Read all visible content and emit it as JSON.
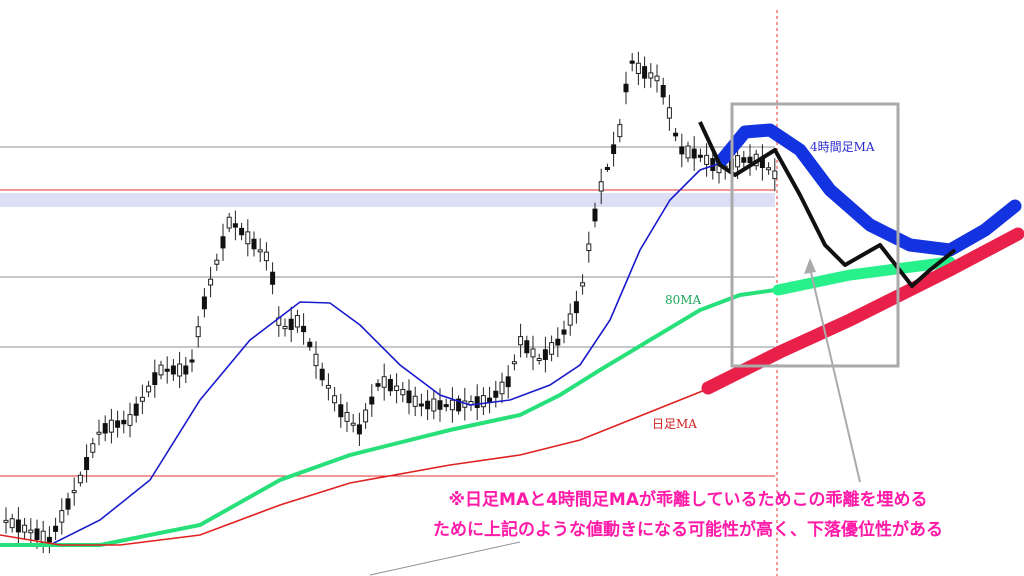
{
  "labels": {
    "h4_ma": "4時間足MA",
    "ma80": "80MA",
    "daily_ma": "日足MA"
  },
  "note": [
    "※日足MAと4時間足MAが乖離しているためこの乖離を埋める",
    "ために上記のような値動きになる可能性が高く、下落優位性がある"
  ]
}
